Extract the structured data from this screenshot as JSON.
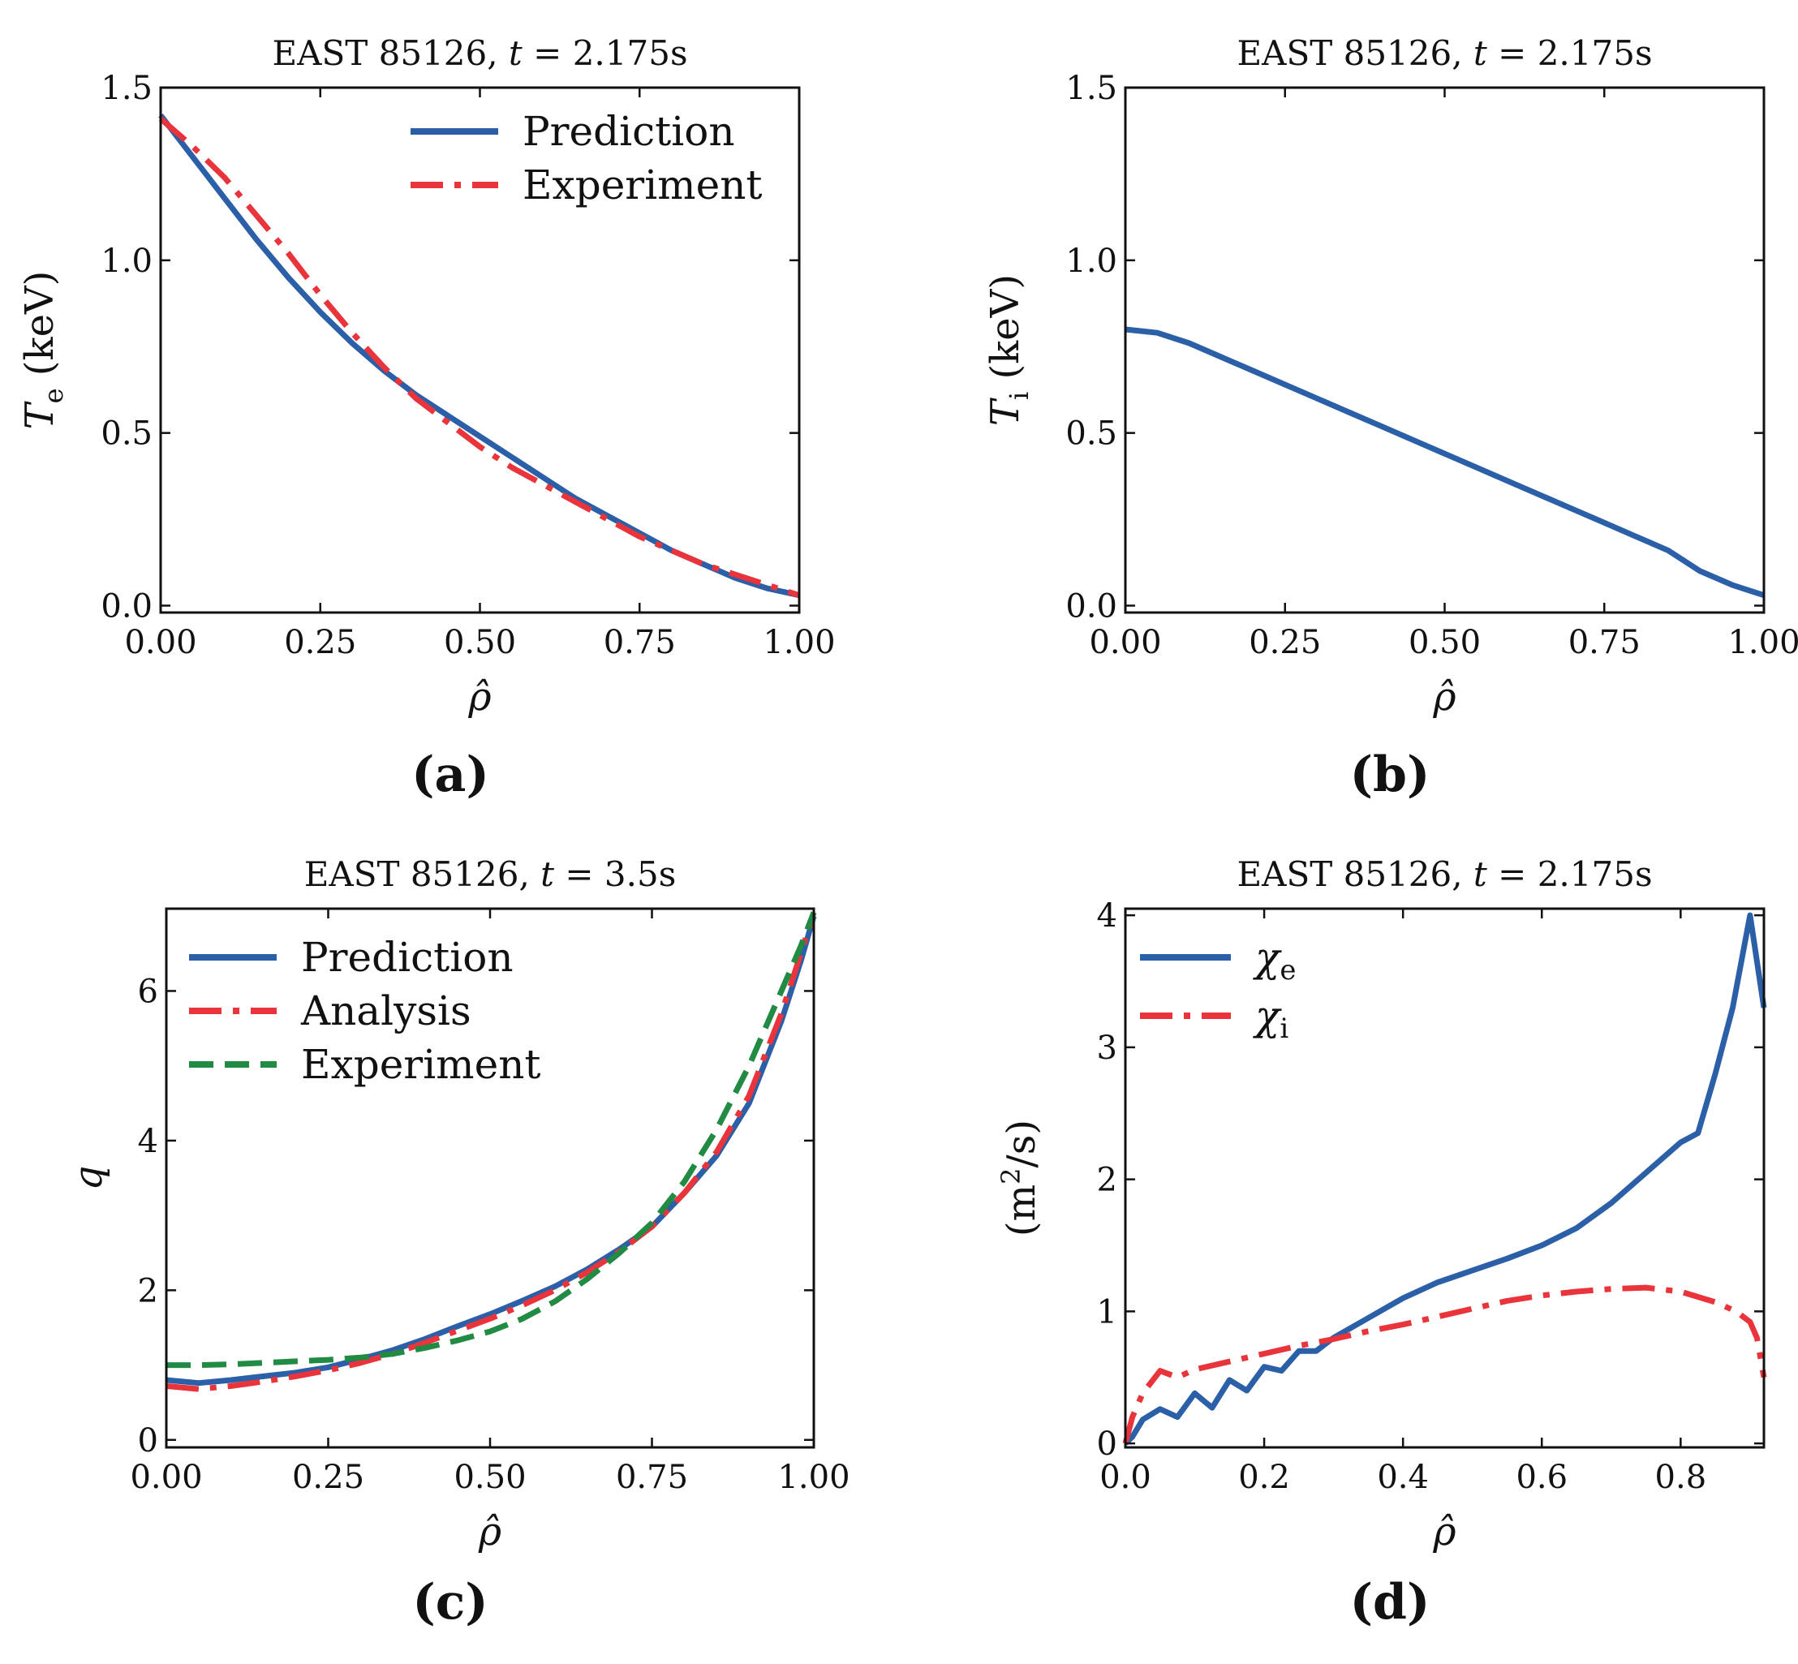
{
  "colors": {
    "prediction": "#2b5fa8",
    "analysis": "#e8343a",
    "experiment_red": "#e8343a",
    "experiment_green": "#218a43",
    "axis": "#111111"
  },
  "chart_data": [
    {
      "id": "a",
      "type": "line",
      "title": "EAST 85126, t = 2.175s",
      "title_prefix": "EAST 85126,",
      "title_var": "t",
      "title_value": "= 2.175s",
      "xlabel": "ρ̂",
      "ylabel_main": "T",
      "ylabel_sub": "e",
      "ylabel_unit": "(keV)",
      "xlim": [
        0,
        1
      ],
      "ylim": [
        -0.02,
        1.5
      ],
      "xticks": [
        0,
        0.25,
        0.5,
        0.75,
        1
      ],
      "xtick_labels": [
        "0.00",
        "0.25",
        "0.50",
        "0.75",
        "1.00"
      ],
      "yticks": [
        0,
        0.5,
        1,
        1.5
      ],
      "ytick_labels": [
        "0.0",
        "0.5",
        "1.0",
        "1.5"
      ],
      "panel_label": "(a)",
      "legend_position": "top-right",
      "legend_items": [
        "Prediction",
        "Experiment"
      ],
      "series": [
        {
          "name": "Prediction",
          "style": "solid",
          "color": "#2b5fa8",
          "x": [
            0,
            0.05,
            0.1,
            0.15,
            0.2,
            0.25,
            0.3,
            0.35,
            0.4,
            0.45,
            0.5,
            0.55,
            0.6,
            0.65,
            0.7,
            0.75,
            0.8,
            0.85,
            0.9,
            0.95,
            1.0
          ],
          "y": [
            1.42,
            1.3,
            1.18,
            1.06,
            0.95,
            0.85,
            0.76,
            0.68,
            0.61,
            0.55,
            0.49,
            0.43,
            0.37,
            0.31,
            0.26,
            0.21,
            0.16,
            0.12,
            0.08,
            0.05,
            0.03
          ]
        },
        {
          "name": "Experiment",
          "style": "dashdot",
          "color": "#e8343a",
          "x": [
            0,
            0.05,
            0.1,
            0.15,
            0.2,
            0.25,
            0.3,
            0.35,
            0.4,
            0.45,
            0.5,
            0.55,
            0.6,
            0.65,
            0.7,
            0.75,
            0.8,
            0.85,
            0.9,
            0.95,
            1.0
          ],
          "y": [
            1.41,
            1.33,
            1.24,
            1.13,
            1.02,
            0.9,
            0.79,
            0.69,
            0.6,
            0.53,
            0.46,
            0.4,
            0.35,
            0.3,
            0.25,
            0.2,
            0.16,
            0.12,
            0.09,
            0.06,
            0.03
          ]
        }
      ]
    },
    {
      "id": "b",
      "type": "line",
      "title": "EAST 85126, t = 2.175s",
      "title_prefix": "EAST 85126,",
      "title_var": "t",
      "title_value": "= 2.175s",
      "xlabel": "ρ̂",
      "ylabel_main": "T",
      "ylabel_sub": "i",
      "ylabel_unit": "(keV)",
      "xlim": [
        0,
        1
      ],
      "ylim": [
        -0.02,
        1.5
      ],
      "xticks": [
        0,
        0.25,
        0.5,
        0.75,
        1
      ],
      "xtick_labels": [
        "0.00",
        "0.25",
        "0.50",
        "0.75",
        "1.00"
      ],
      "yticks": [
        0,
        0.5,
        1,
        1.5
      ],
      "ytick_labels": [
        "0.0",
        "0.5",
        "1.0",
        "1.5"
      ],
      "panel_label": "(b)",
      "legend_items": [],
      "series": [
        {
          "name": "Prediction",
          "style": "solid",
          "color": "#2b5fa8",
          "x": [
            0,
            0.05,
            0.1,
            0.15,
            0.2,
            0.25,
            0.3,
            0.35,
            0.4,
            0.45,
            0.5,
            0.55,
            0.6,
            0.65,
            0.7,
            0.75,
            0.8,
            0.85,
            0.9,
            0.95,
            1.0
          ],
          "y": [
            0.8,
            0.79,
            0.76,
            0.72,
            0.68,
            0.64,
            0.6,
            0.56,
            0.52,
            0.48,
            0.44,
            0.4,
            0.36,
            0.32,
            0.28,
            0.24,
            0.2,
            0.16,
            0.1,
            0.06,
            0.03
          ]
        }
      ]
    },
    {
      "id": "c",
      "type": "line",
      "title": "EAST 85126, t = 3.5s",
      "title_prefix": "EAST 85126,",
      "title_var": "t",
      "title_value": "= 3.5s",
      "xlabel": "ρ̂",
      "ylabel_main": "q",
      "ylabel_sub": "",
      "ylabel_unit": "",
      "xlim": [
        0,
        1
      ],
      "ylim": [
        -0.1,
        7.1
      ],
      "xticks": [
        0,
        0.25,
        0.5,
        0.75,
        1
      ],
      "xtick_labels": [
        "0.00",
        "0.25",
        "0.50",
        "0.75",
        "1.00"
      ],
      "yticks": [
        0,
        2,
        4,
        6
      ],
      "ytick_labels": [
        "0",
        "2",
        "4",
        "6"
      ],
      "panel_label": "(c)",
      "legend_position": "top-left",
      "legend_items": [
        "Prediction",
        "Analysis",
        "Experiment"
      ],
      "series": [
        {
          "name": "Prediction",
          "style": "solid",
          "color": "#2b5fa8",
          "x": [
            0,
            0.05,
            0.1,
            0.15,
            0.2,
            0.25,
            0.3,
            0.35,
            0.4,
            0.45,
            0.5,
            0.55,
            0.6,
            0.65,
            0.7,
            0.75,
            0.8,
            0.85,
            0.9,
            0.95,
            0.98,
            1.0
          ],
          "y": [
            0.8,
            0.76,
            0.8,
            0.85,
            0.9,
            0.97,
            1.08,
            1.2,
            1.35,
            1.52,
            1.68,
            1.86,
            2.05,
            2.28,
            2.55,
            2.85,
            3.3,
            3.8,
            4.5,
            5.6,
            6.4,
            7.0
          ]
        },
        {
          "name": "Analysis",
          "style": "dashdot",
          "color": "#e8343a",
          "x": [
            0,
            0.05,
            0.1,
            0.15,
            0.2,
            0.25,
            0.3,
            0.35,
            0.4,
            0.45,
            0.5,
            0.55,
            0.6,
            0.65,
            0.7,
            0.75,
            0.8,
            0.85,
            0.9,
            0.95,
            0.98,
            1.0
          ],
          "y": [
            0.72,
            0.68,
            0.72,
            0.78,
            0.85,
            0.93,
            1.03,
            1.15,
            1.3,
            1.46,
            1.62,
            1.8,
            2.0,
            2.24,
            2.52,
            2.85,
            3.3,
            3.85,
            4.6,
            5.7,
            6.5,
            7.05
          ]
        },
        {
          "name": "Experiment",
          "style": "dashed",
          "color": "#218a43",
          "x": [
            0,
            0.05,
            0.1,
            0.15,
            0.2,
            0.25,
            0.3,
            0.35,
            0.4,
            0.45,
            0.5,
            0.55,
            0.6,
            0.65,
            0.7,
            0.75,
            0.8,
            0.85,
            0.9,
            0.95,
            0.98,
            1.0
          ],
          "y": [
            1.0,
            1.0,
            1.01,
            1.03,
            1.05,
            1.07,
            1.1,
            1.15,
            1.23,
            1.33,
            1.45,
            1.62,
            1.85,
            2.15,
            2.5,
            2.9,
            3.45,
            4.15,
            5.0,
            6.0,
            6.6,
            7.05
          ]
        }
      ]
    },
    {
      "id": "d",
      "type": "line",
      "title": "EAST 85126, t = 2.175s",
      "title_prefix": "EAST 85126,",
      "title_var": "t",
      "title_value": "= 2.175s",
      "xlabel": "ρ̂",
      "ylabel_main": "(m",
      "ylabel_sup": "2",
      "ylabel_unit": "/s)",
      "xlim": [
        0,
        0.92
      ],
      "ylim": [
        -0.03,
        4.05
      ],
      "xticks": [
        0,
        0.2,
        0.4,
        0.6,
        0.8
      ],
      "xtick_labels": [
        "0.0",
        "0.2",
        "0.4",
        "0.6",
        "0.8"
      ],
      "yticks": [
        0,
        1,
        2,
        3,
        4
      ],
      "ytick_labels": [
        "0",
        "1",
        "2",
        "3",
        "4"
      ],
      "panel_label": "(d)",
      "legend_position": "top-left",
      "legend_items": [
        "χe",
        "χi"
      ],
      "legend_main": [
        "χ",
        "χ"
      ],
      "legend_sub": [
        "e",
        "i"
      ],
      "series": [
        {
          "name": "χe",
          "style": "solid",
          "color": "#2b5fa8",
          "x": [
            0.0,
            0.01,
            0.025,
            0.05,
            0.075,
            0.1,
            0.125,
            0.15,
            0.175,
            0.2,
            0.225,
            0.25,
            0.275,
            0.3,
            0.35,
            0.4,
            0.45,
            0.5,
            0.55,
            0.6,
            0.65,
            0.7,
            0.75,
            0.8,
            0.825,
            0.85,
            0.875,
            0.9,
            0.92
          ],
          "y": [
            0.0,
            0.05,
            0.18,
            0.26,
            0.2,
            0.38,
            0.27,
            0.48,
            0.4,
            0.58,
            0.55,
            0.7,
            0.7,
            0.8,
            0.95,
            1.1,
            1.22,
            1.31,
            1.4,
            1.5,
            1.63,
            1.82,
            2.05,
            2.28,
            2.35,
            2.8,
            3.3,
            4.0,
            3.3
          ]
        },
        {
          "name": "χi",
          "style": "dashdot",
          "color": "#e8343a",
          "x": [
            0.0,
            0.01,
            0.025,
            0.05,
            0.075,
            0.1,
            0.15,
            0.2,
            0.25,
            0.3,
            0.35,
            0.4,
            0.45,
            0.5,
            0.55,
            0.6,
            0.65,
            0.7,
            0.75,
            0.8,
            0.85,
            0.88,
            0.9,
            0.91,
            0.92
          ],
          "y": [
            0.0,
            0.2,
            0.38,
            0.55,
            0.5,
            0.56,
            0.62,
            0.68,
            0.74,
            0.79,
            0.85,
            0.9,
            0.96,
            1.02,
            1.08,
            1.12,
            1.15,
            1.17,
            1.18,
            1.15,
            1.07,
            1.0,
            0.92,
            0.8,
            0.5
          ]
        }
      ]
    }
  ]
}
